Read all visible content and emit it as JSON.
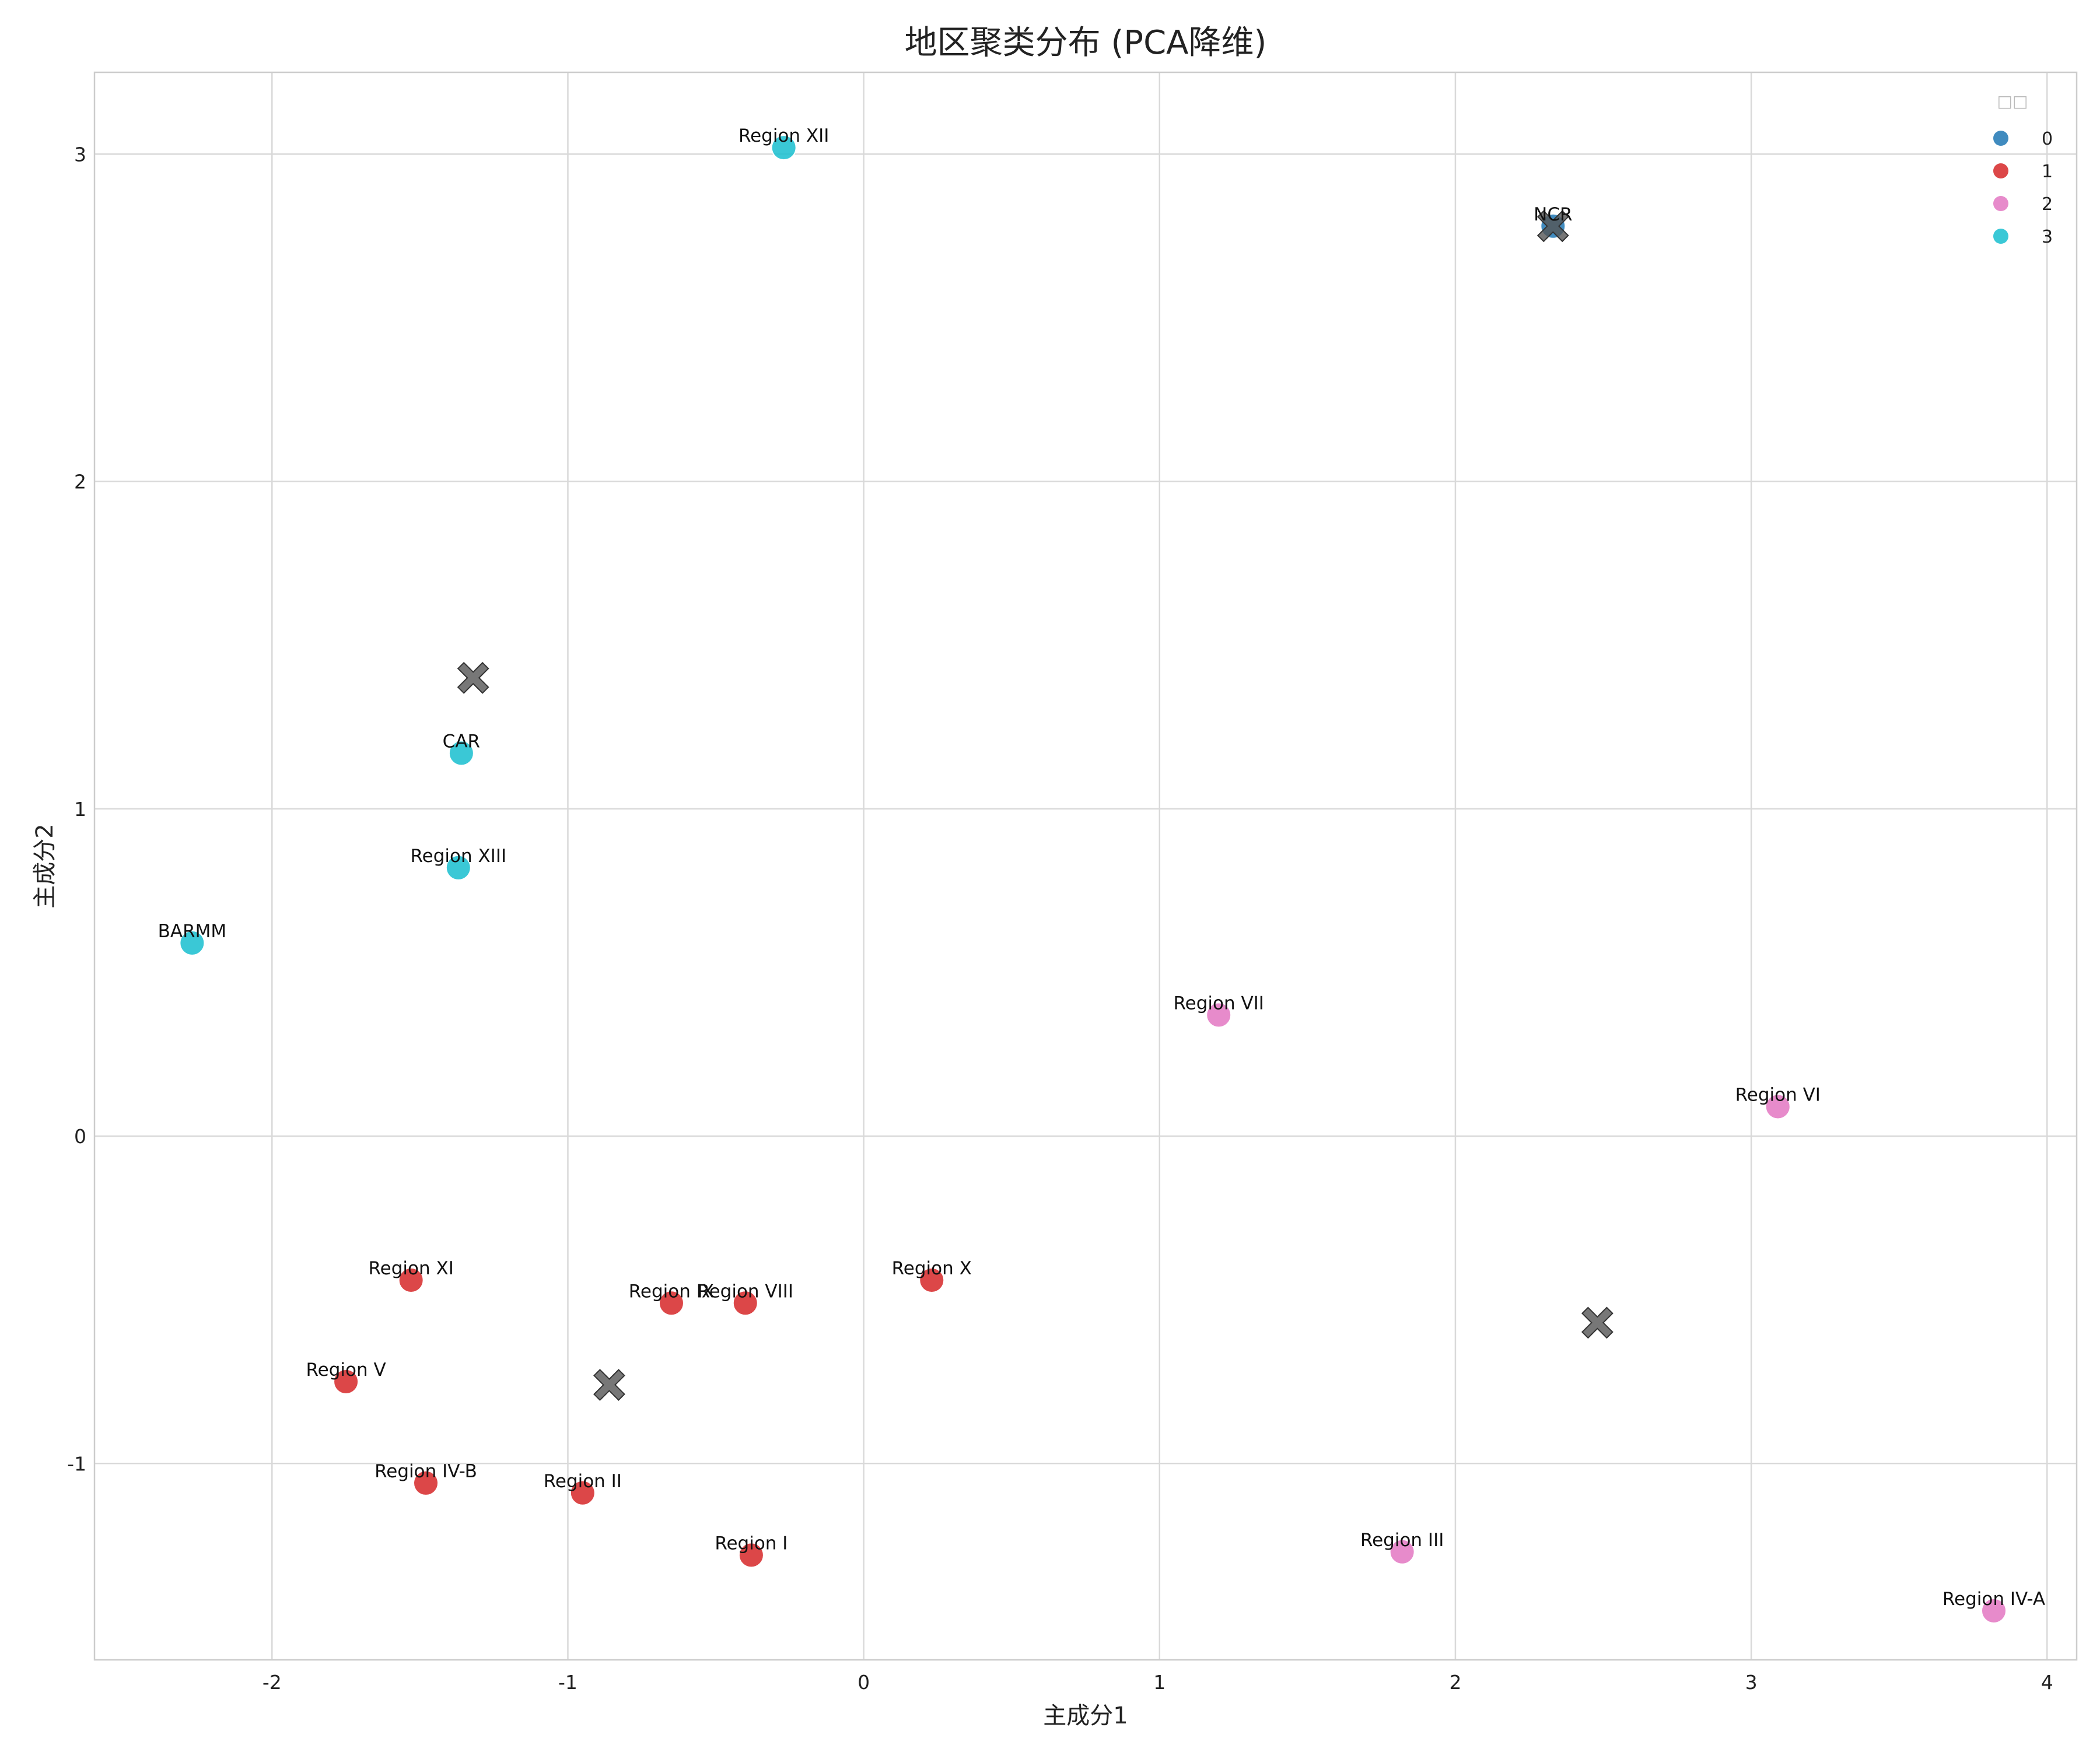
{
  "chart_data": {
    "type": "scatter",
    "title": "地区聚类分布 (PCA降维)",
    "xlabel": "主成分1",
    "ylabel": "主成分2",
    "xlim": [
      -2.6,
      4.1
    ],
    "ylim": [
      -1.6,
      3.25
    ],
    "xticks": [
      -2,
      -1,
      0,
      1,
      2,
      3,
      4
    ],
    "yticks": [
      -1,
      0,
      1,
      2,
      3
    ],
    "grid": true,
    "legend": {
      "title": "□□",
      "position": "top-right",
      "entries": [
        {
          "label": "0",
          "color": "#1f77b4"
        },
        {
          "label": "1",
          "color": "#d62728"
        },
        {
          "label": "2",
          "color": "#e377c2"
        },
        {
          "label": "3",
          "color": "#17becf"
        }
      ]
    },
    "points": [
      {
        "name": "NCR",
        "x": 2.33,
        "y": 2.78,
        "cluster": 0
      },
      {
        "name": "Region XI",
        "x": -1.53,
        "y": -0.44,
        "cluster": 1
      },
      {
        "name": "Region IX",
        "x": -0.65,
        "y": -0.51,
        "cluster": 1
      },
      {
        "name": "Region VIII",
        "x": -0.4,
        "y": -0.51,
        "cluster": 1
      },
      {
        "name": "Region X",
        "x": 0.23,
        "y": -0.44,
        "cluster": 1
      },
      {
        "name": "Region V",
        "x": -1.75,
        "y": -0.75,
        "cluster": 1
      },
      {
        "name": "Region IV-B",
        "x": -1.48,
        "y": -1.06,
        "cluster": 1
      },
      {
        "name": "Region II",
        "x": -0.95,
        "y": -1.09,
        "cluster": 1
      },
      {
        "name": "Region I",
        "x": -0.38,
        "y": -1.28,
        "cluster": 1
      },
      {
        "name": "Region VII",
        "x": 1.2,
        "y": 0.37,
        "cluster": 2
      },
      {
        "name": "Region VI",
        "x": 3.09,
        "y": 0.09,
        "cluster": 2
      },
      {
        "name": "Region III",
        "x": 1.82,
        "y": -1.27,
        "cluster": 2
      },
      {
        "name": "Region IV-A",
        "x": 3.82,
        "y": -1.45,
        "cluster": 2
      },
      {
        "name": "Region XII",
        "x": -0.27,
        "y": 3.02,
        "cluster": 3
      },
      {
        "name": "CAR",
        "x": -1.36,
        "y": 1.17,
        "cluster": 3
      },
      {
        "name": "Region XIII",
        "x": -1.37,
        "y": 0.82,
        "cluster": 3
      },
      {
        "name": "BARMM",
        "x": -2.27,
        "y": 0.59,
        "cluster": 3
      }
    ],
    "centroids": [
      {
        "x": 2.33,
        "y": 2.78
      },
      {
        "x": -0.86,
        "y": -0.76
      },
      {
        "x": 2.48,
        "y": -0.57
      },
      {
        "x": -1.32,
        "y": 1.4
      }
    ],
    "centroid_color": "#555555"
  }
}
